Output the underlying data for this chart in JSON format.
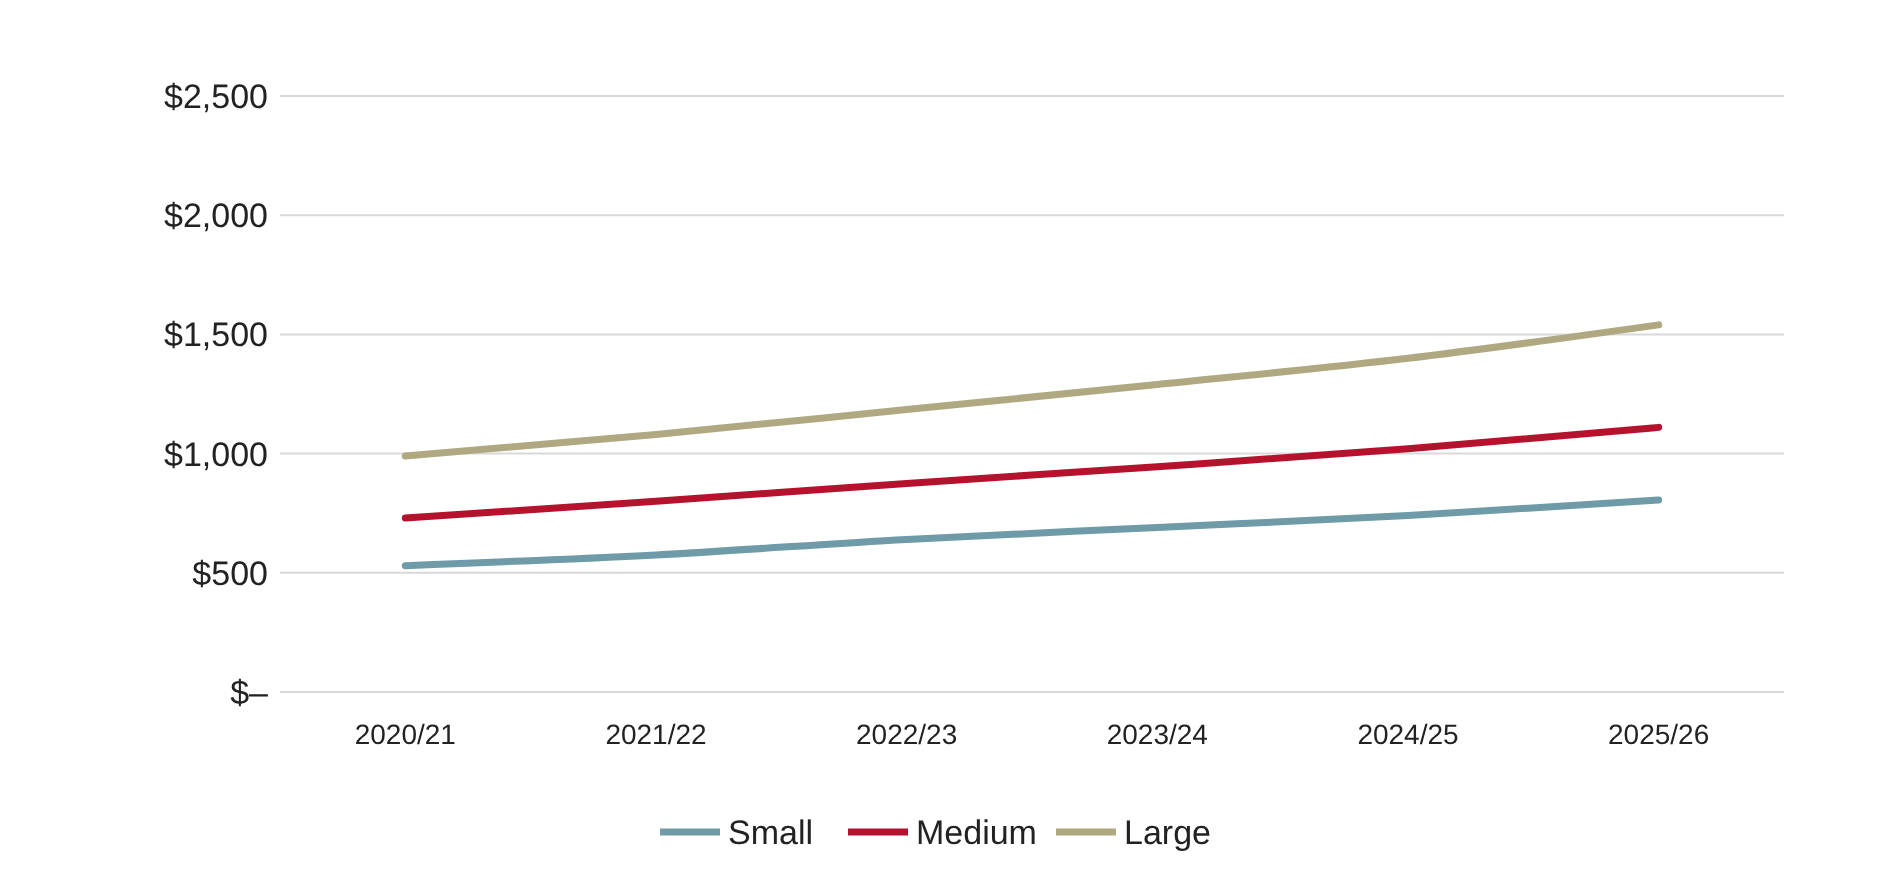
{
  "chart_data": {
    "type": "line",
    "categories": [
      "2020/21",
      "2021/22",
      "2022/23",
      "2023/24",
      "2024/25",
      "2025/26"
    ],
    "series": [
      {
        "name": "Small",
        "color": "#6f9aa8",
        "values": [
          530,
          575,
          640,
          690,
          740,
          805
        ]
      },
      {
        "name": "Medium",
        "color": "#b5122e",
        "values": [
          730,
          800,
          875,
          945,
          1020,
          1110
        ]
      },
      {
        "name": "Large",
        "color": "#b0a880",
        "values": [
          990,
          1080,
          1185,
          1290,
          1400,
          1540
        ]
      }
    ],
    "ylim": [
      0,
      2500
    ],
    "yticks": [
      {
        "value": 0,
        "label": "$–"
      },
      {
        "value": 500,
        "label": "$500"
      },
      {
        "value": 1000,
        "label": "$1,000"
      },
      {
        "value": 1500,
        "label": "$1,500"
      },
      {
        "value": 2000,
        "label": "$2,000"
      },
      {
        "value": 2500,
        "label": "$2,500"
      }
    ],
    "grid": "y",
    "legend": "bottom",
    "marker": "none",
    "line_style": "solid"
  }
}
